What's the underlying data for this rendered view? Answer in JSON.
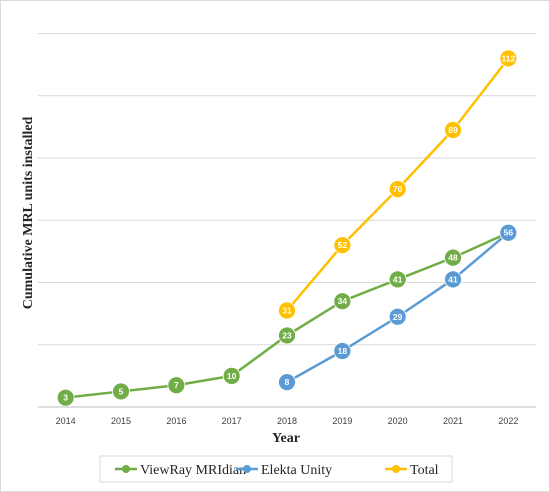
{
  "chart_data": {
    "type": "line",
    "title": "",
    "xlabel": "Year",
    "ylabel": "Cumulative MRL units installed",
    "ylim": [
      0,
      125
    ],
    "y_grid_step": 20,
    "grid": true,
    "legend_position": "bottom",
    "x": [
      2014,
      2015,
      2016,
      2017,
      2018,
      2019,
      2020,
      2021,
      2022
    ],
    "series": [
      {
        "name": "ViewRay MRIdian",
        "color": "#70ad47",
        "values": [
          3,
          5,
          7,
          10,
          23,
          34,
          41,
          48,
          56
        ],
        "labels": [
          "3",
          "5",
          "7",
          "10",
          "23",
          "34",
          "41",
          "48",
          "56"
        ]
      },
      {
        "name": "Elekta Unity",
        "color": "#5b9bd5",
        "values": [
          null,
          null,
          null,
          null,
          8,
          18,
          29,
          41,
          56
        ],
        "labels": [
          "",
          "",
          "",
          "",
          "8",
          "18",
          "29",
          "41",
          "56"
        ]
      },
      {
        "name": "Total",
        "color": "#ffc000",
        "values": [
          null,
          null,
          null,
          null,
          31,
          52,
          70,
          89,
          112
        ],
        "labels": [
          "",
          "",
          "",
          "",
          "31",
          "52",
          "70",
          "89",
          "112"
        ]
      }
    ]
  }
}
